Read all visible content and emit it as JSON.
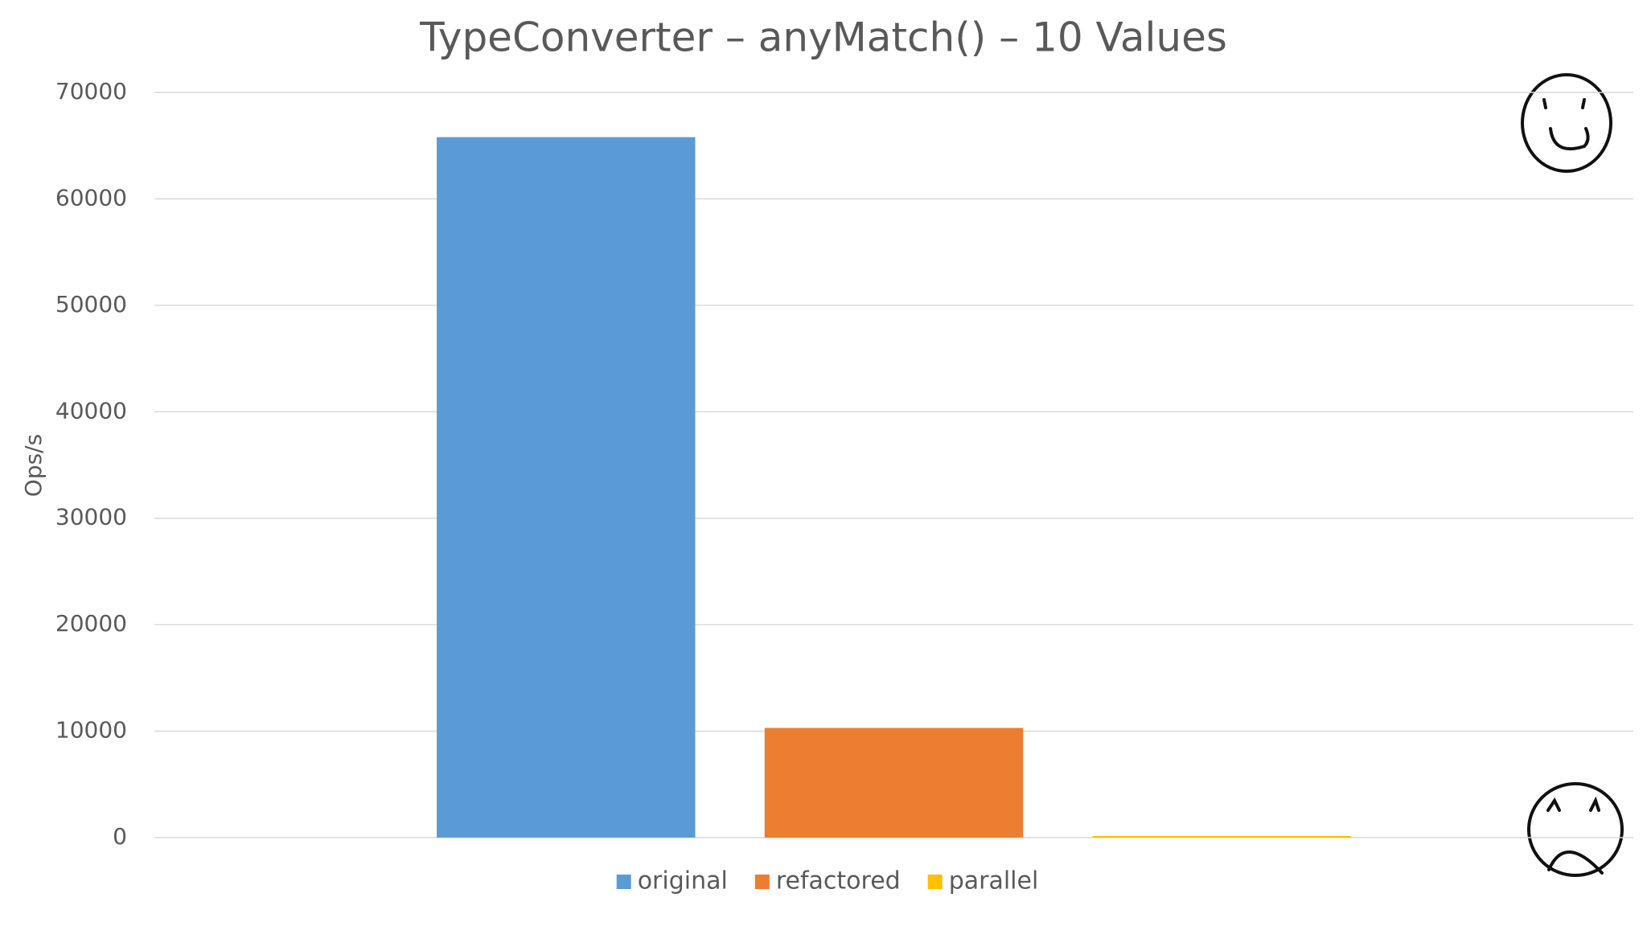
{
  "chart_data": {
    "type": "bar",
    "title": "TypeConverter – anyMatch() – 10 Values",
    "y_label": "Ops/s",
    "categories": [
      null
    ],
    "series": [
      {
        "name": "original",
        "color": "#5b9bd5",
        "values": [
          65800
        ]
      },
      {
        "name": "refactored",
        "color": "#ed7d31",
        "values": [
          10300
        ]
      },
      {
        "name": "parallel",
        "color": "#ffc000",
        "values": [
          150
        ]
      }
    ],
    "ylim": [
      0,
      70000
    ],
    "yticks": [
      0,
      10000,
      20000,
      30000,
      40000,
      50000,
      60000,
      70000
    ],
    "grid": true,
    "legend": "bottom"
  }
}
